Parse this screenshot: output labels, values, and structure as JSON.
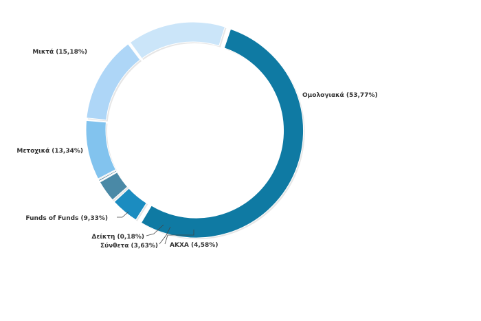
{
  "chart_data": {
    "type": "pie",
    "variant": "donut",
    "title": "",
    "slices": [
      {
        "name": "Ομολογιακά",
        "value": 53.77,
        "label": "Ομολογιακά (53,77%)",
        "color": "#0f7aa3"
      },
      {
        "name": "ΑΚΧΑ",
        "value": 4.58,
        "label": "ΑΚΧΑ (4,58%)",
        "color": "#1b8cc0"
      },
      {
        "name": "Σύνθετα",
        "value": 3.63,
        "label": "Σύνθετα (3,63%)",
        "color": "#4a89a6"
      },
      {
        "name": "Δείκτη",
        "value": 0.18,
        "label": "Δείκτη (0,18%)",
        "color": "#2f6c88"
      },
      {
        "name": "Funds of Funds",
        "value": 9.33,
        "label": "Funds of Funds (9,33%)",
        "color": "#82c3ee"
      },
      {
        "name": "Μετοχικά",
        "value": 13.34,
        "label": "Μετοχικά (13,34%)",
        "color": "#aed6f7"
      },
      {
        "name": "Μικτά",
        "value": 15.18,
        "label": "Μικτά (15,18%)",
        "color": "#cbe5f9"
      }
    ],
    "start_angle_deg": 18,
    "direction": "clockwise",
    "legend": "none"
  }
}
